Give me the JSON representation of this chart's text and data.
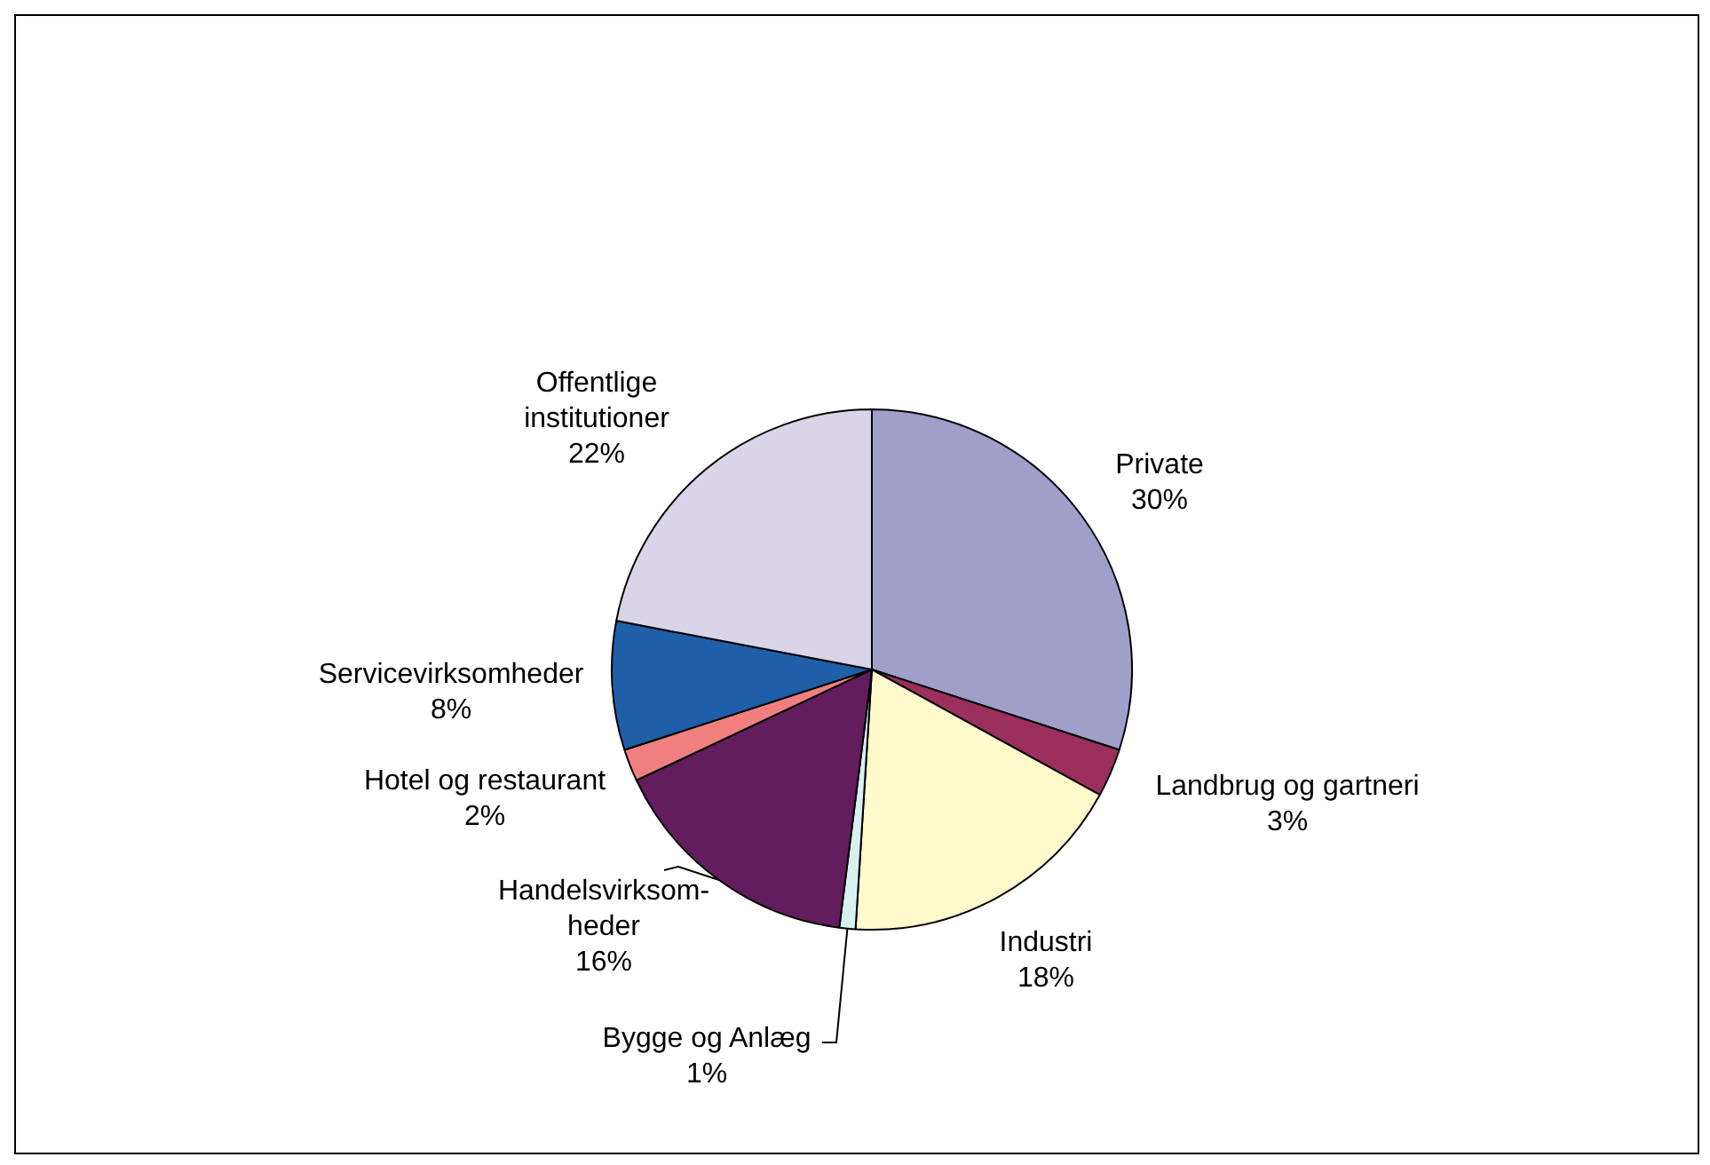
{
  "chart_data": {
    "type": "pie",
    "categories": [
      "Private",
      "Landbrug og gartneri",
      "Industri",
      "Bygge og Anlæg",
      "Handelsvirksom- heder",
      "Hotel og restaurant",
      "Servicevirksomheder",
      "Offentlige institutioner"
    ],
    "values": [
      30,
      3,
      18,
      1,
      16,
      2,
      8,
      22
    ],
    "colors": [
      "#a09fc9",
      "#9b2f5e",
      "#fff9cc",
      "#d9f0f0",
      "#631c5e",
      "#f08080",
      "#1f5fa8",
      "#dad4e8"
    ],
    "value_labels": [
      "30%",
      "3%",
      "18%",
      "1%",
      "16%",
      "2%",
      "8%",
      "22%"
    ],
    "legend": false
  }
}
